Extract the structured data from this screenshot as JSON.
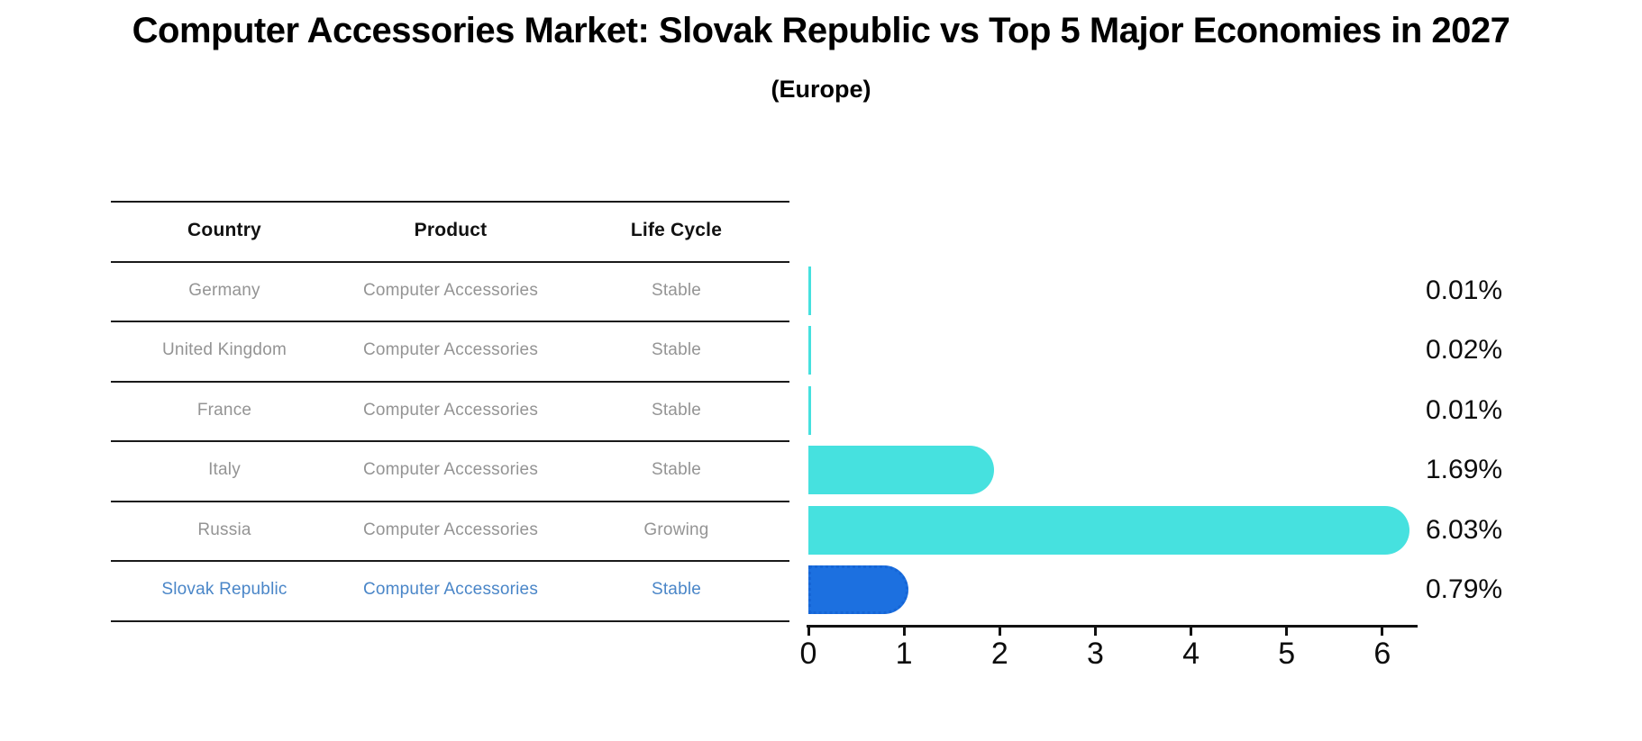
{
  "title": "Computer Accessories Market: Slovak Republic vs Top 5 Major Economies in 2027",
  "subtitle": "(Europe)",
  "table": {
    "columns": [
      "Country",
      "Product",
      "Life Cycle"
    ]
  },
  "chart_data": {
    "type": "bar",
    "orientation": "horizontal",
    "title": "Computer Accessories Market: Slovak Republic vs Top 5 Major Economies in 2027 (Europe)",
    "categories": [
      "Germany",
      "United Kingdom",
      "France",
      "Italy",
      "Russia",
      "Slovak Republic"
    ],
    "rows": [
      {
        "country": "Germany",
        "product": "Computer Accessories",
        "life_cycle": "Stable",
        "value": 0.01,
        "label": "0.01%",
        "highlight": false
      },
      {
        "country": "United Kingdom",
        "product": "Computer Accessories",
        "life_cycle": "Stable",
        "value": 0.02,
        "label": "0.02%",
        "highlight": false
      },
      {
        "country": "France",
        "product": "Computer Accessories",
        "life_cycle": "Stable",
        "value": 0.01,
        "label": "0.01%",
        "highlight": false
      },
      {
        "country": "Italy",
        "product": "Computer Accessories",
        "life_cycle": "Stable",
        "value": 1.69,
        "label": "1.69%",
        "highlight": false
      },
      {
        "country": "Russia",
        "product": "Computer Accessories",
        "life_cycle": "Growing",
        "value": 6.03,
        "label": "6.03%",
        "highlight": false
      },
      {
        "country": "Slovak Republic",
        "product": "Computer Accessories",
        "life_cycle": "Stable",
        "value": 0.79,
        "label": "0.79%",
        "highlight": true
      }
    ],
    "x_ticks": [
      "0",
      "1",
      "2",
      "3",
      "4",
      "5",
      "6"
    ],
    "xlim": [
      0,
      6.37
    ],
    "grid": false,
    "legend": "none"
  },
  "colors": {
    "bar_default": "#46E1DF",
    "bar_highlight": "#1C70E0",
    "bar_highlight_border": "#1565D6",
    "highlight_text": "#4A86C8",
    "row_text": "#949494",
    "header_text": "#111111",
    "axis": "#111111"
  }
}
